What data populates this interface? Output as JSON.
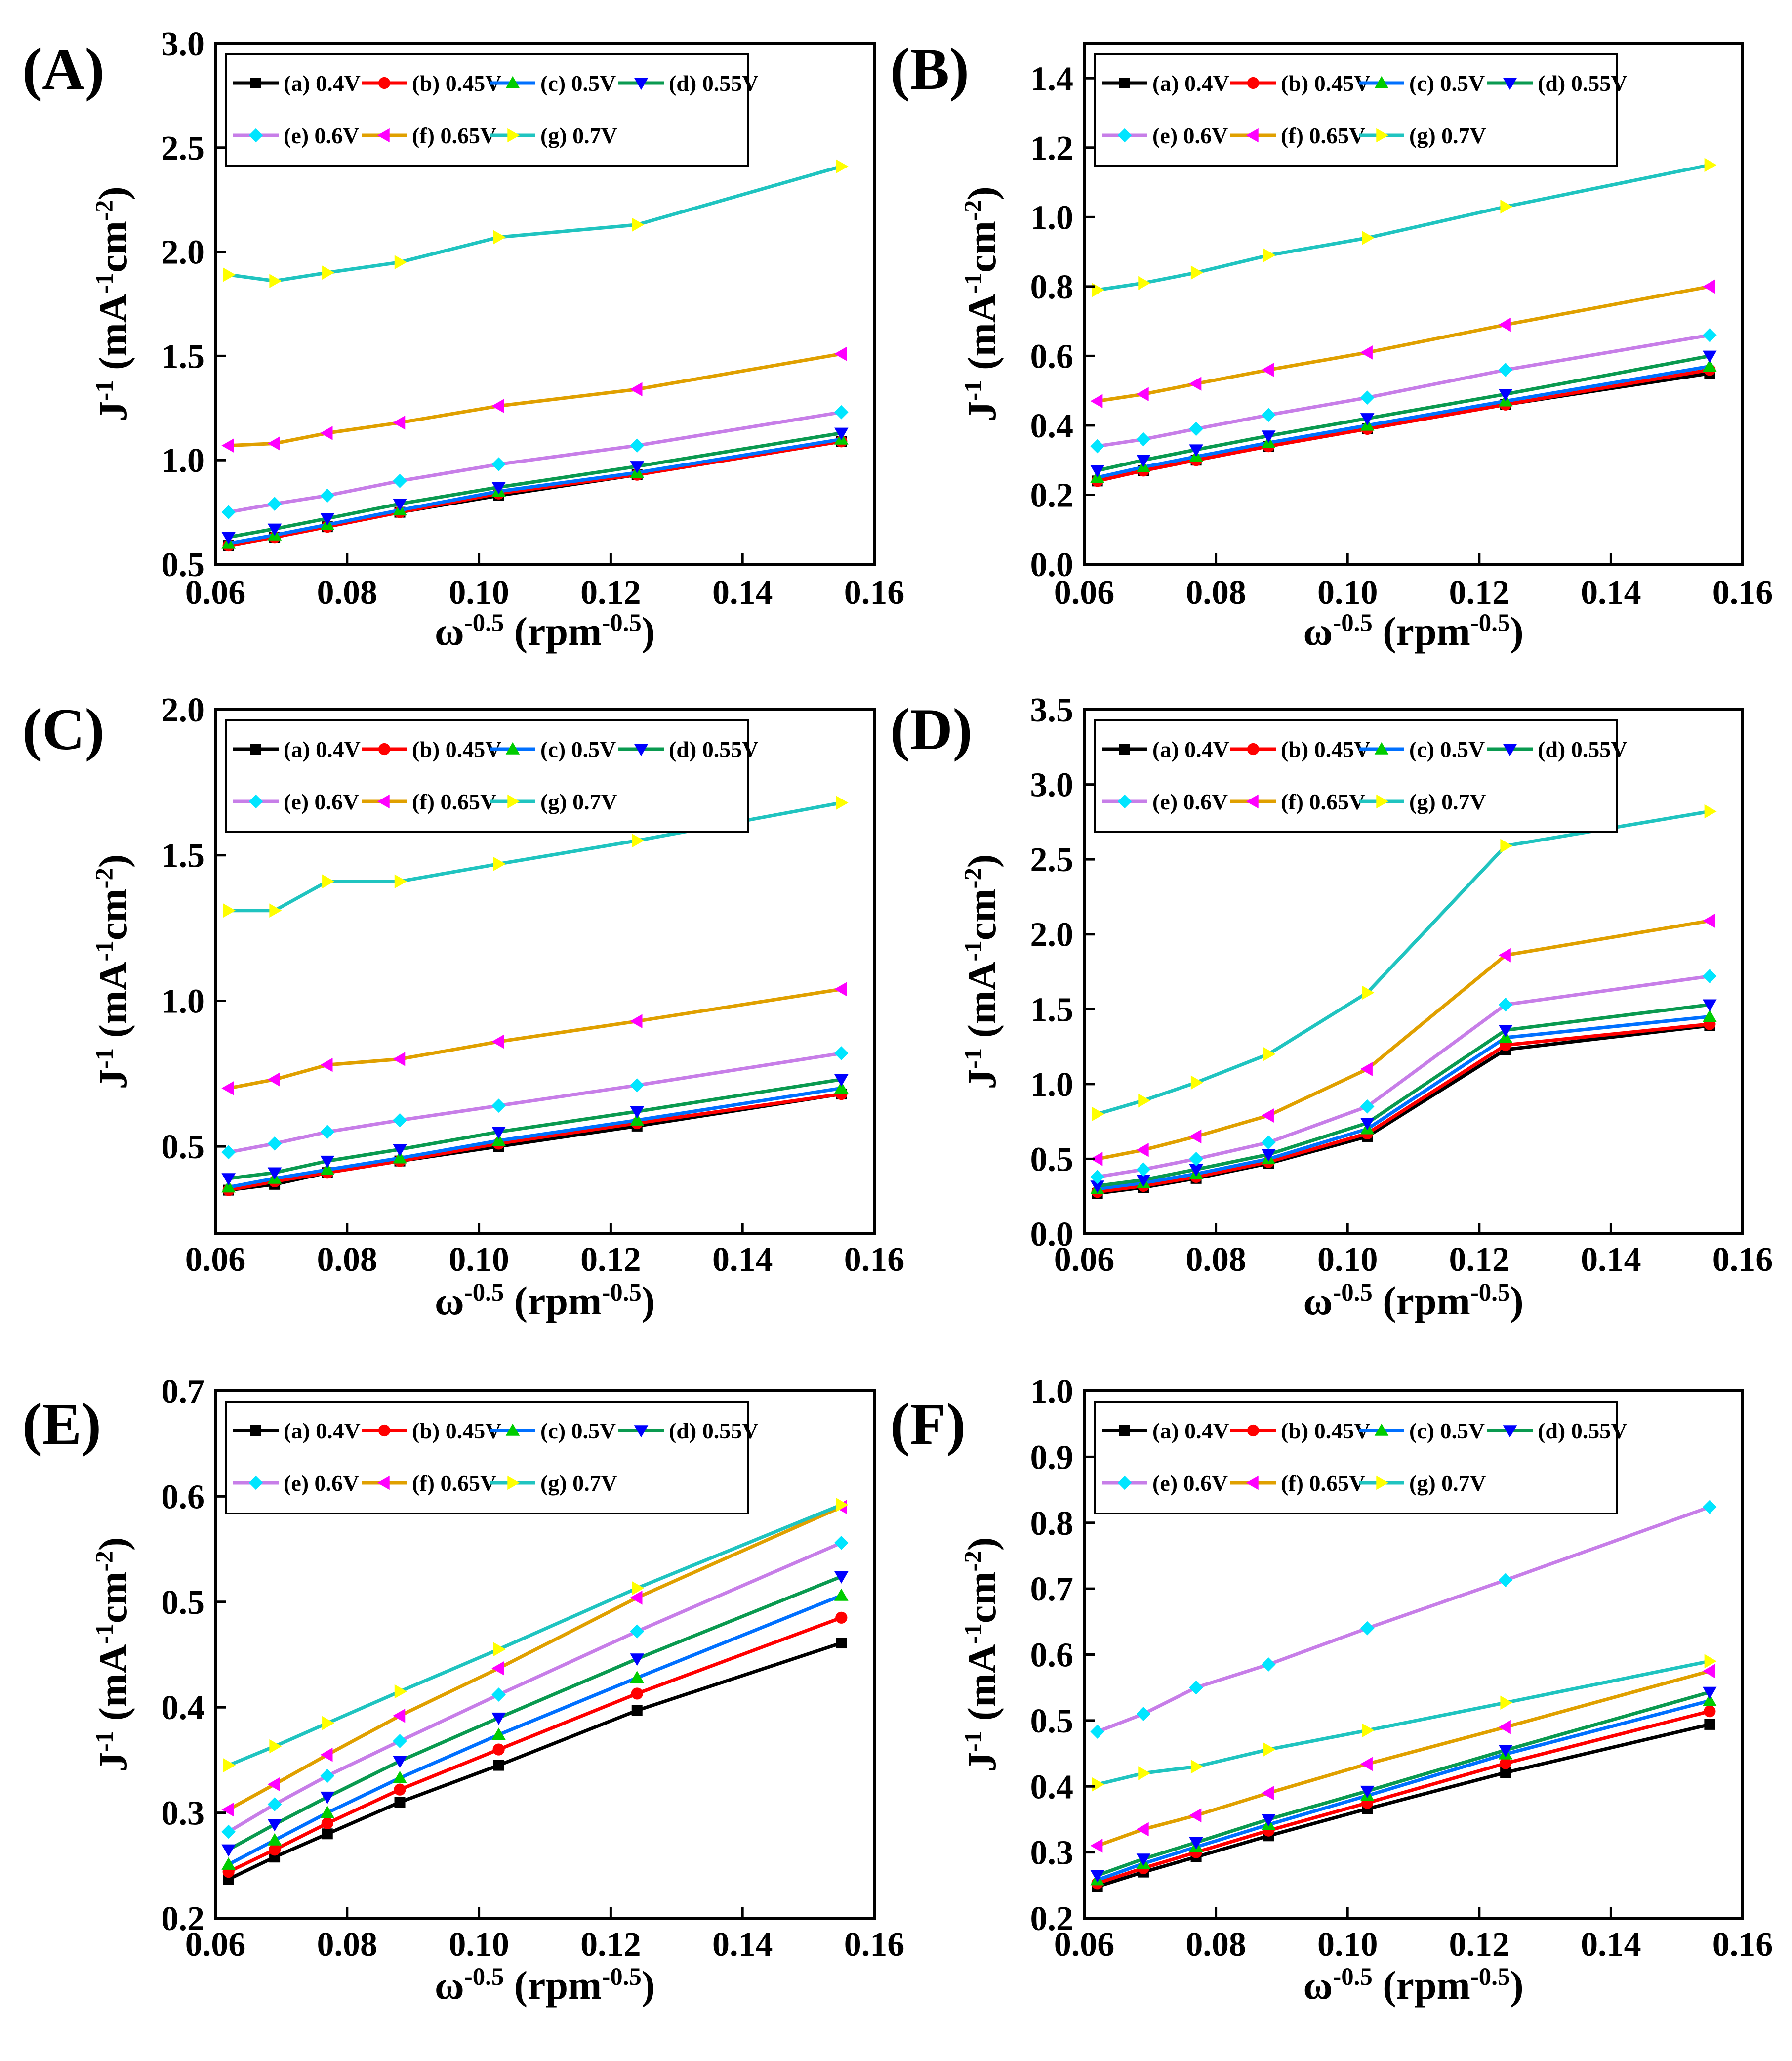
{
  "colors": {
    "a": "#000000",
    "b": "#ff0000",
    "c": "#0070ff",
    "d": "#0a9a50",
    "e": "#c77ee8",
    "f": "#e0a000",
    "g": "#20c4c0",
    "marker_a": "#000000",
    "marker_b": "#ff0000",
    "marker_c": "#00cc00",
    "marker_d": "#0000ff",
    "marker_e": "#00e5ff",
    "marker_f": "#ff00ff",
    "marker_g": "#ffff00"
  },
  "chart_data": [
    {
      "type": "line",
      "panel_label": "(A)",
      "xlabel": "ω^-0.5 (rpm^-0.5)",
      "ylabel": "J^-1 (mA^-1cm^-2)",
      "xlim": [
        0.06,
        0.16
      ],
      "ylim": [
        0.5,
        3.0
      ],
      "xticks": [
        "0.06",
        "0.08",
        "0.10",
        "0.12",
        "0.14",
        "0.16"
      ],
      "yticks": [
        "0.5",
        "1.0",
        "1.5",
        "2.0",
        "2.5",
        "3.0"
      ],
      "legend": [
        "(a) 0.4V",
        "(b) 0.45V",
        "(c) 0.5V",
        "(d) 0.55V",
        "(e) 0.6V",
        "(f) 0.65V",
        "(g) 0.7V"
      ],
      "x": [
        0.062,
        0.069,
        0.077,
        0.088,
        0.103,
        0.124,
        0.155
      ],
      "series": [
        {
          "name": "(a) 0.4V",
          "values": [
            0.59,
            0.63,
            0.68,
            0.75,
            0.83,
            0.93,
            1.09
          ]
        },
        {
          "name": "(b) 0.45V",
          "values": [
            0.59,
            0.63,
            0.68,
            0.75,
            0.84,
            0.93,
            1.09
          ]
        },
        {
          "name": "(c) 0.5V",
          "values": [
            0.6,
            0.64,
            0.69,
            0.76,
            0.85,
            0.94,
            1.1
          ]
        },
        {
          "name": "(d) 0.55V",
          "values": [
            0.63,
            0.67,
            0.72,
            0.79,
            0.87,
            0.97,
            1.13
          ]
        },
        {
          "name": "(e) 0.6V",
          "values": [
            0.75,
            0.79,
            0.83,
            0.9,
            0.98,
            1.07,
            1.23
          ]
        },
        {
          "name": "(f) 0.65V",
          "values": [
            1.07,
            1.08,
            1.13,
            1.18,
            1.26,
            1.34,
            1.51
          ]
        },
        {
          "name": "(g) 0.7V",
          "values": [
            1.89,
            1.86,
            1.9,
            1.95,
            2.07,
            2.13,
            2.41
          ]
        }
      ]
    },
    {
      "type": "line",
      "panel_label": "(B)",
      "xlabel": "ω^-0.5 (rpm^-0.5)",
      "ylabel": "J^-1 (mA^-1cm^-2)",
      "xlim": [
        0.06,
        0.16
      ],
      "ylim": [
        0.0,
        1.5
      ],
      "xticks": [
        "0.06",
        "0.08",
        "0.10",
        "0.12",
        "0.14",
        "0.16"
      ],
      "yticks": [
        "0.0",
        "0.2",
        "0.4",
        "0.6",
        "0.8",
        "1.0",
        "1.2",
        "1.4"
      ],
      "legend": [
        "(a) 0.4V",
        "(b) 0.45V",
        "(c) 0.5V",
        "(d) 0.55V",
        "(e) 0.6V",
        "(f) 0.65V",
        "(g) 0.7V"
      ],
      "x": [
        0.062,
        0.069,
        0.077,
        0.088,
        0.103,
        0.124,
        0.155
      ],
      "series": [
        {
          "name": "(a) 0.4V",
          "values": [
            0.24,
            0.27,
            0.3,
            0.34,
            0.39,
            0.46,
            0.55
          ]
        },
        {
          "name": "(b) 0.45V",
          "values": [
            0.24,
            0.27,
            0.3,
            0.34,
            0.39,
            0.46,
            0.56
          ]
        },
        {
          "name": "(c) 0.5V",
          "values": [
            0.25,
            0.28,
            0.31,
            0.35,
            0.4,
            0.47,
            0.57
          ]
        },
        {
          "name": "(d) 0.55V",
          "values": [
            0.27,
            0.3,
            0.33,
            0.37,
            0.42,
            0.49,
            0.6
          ]
        },
        {
          "name": "(e) 0.6V",
          "values": [
            0.34,
            0.36,
            0.39,
            0.43,
            0.48,
            0.56,
            0.66
          ]
        },
        {
          "name": "(f) 0.65V",
          "values": [
            0.47,
            0.49,
            0.52,
            0.56,
            0.61,
            0.69,
            0.8
          ]
        },
        {
          "name": "(g) 0.7V",
          "values": [
            0.79,
            0.81,
            0.84,
            0.89,
            0.94,
            1.03,
            1.15
          ]
        }
      ]
    },
    {
      "type": "line",
      "panel_label": "(C)",
      "xlabel": "ω^-0.5 (rpm^-0.5)",
      "ylabel": "J^-1 (mA^-1cm^-2)",
      "xlim": [
        0.06,
        0.16
      ],
      "ylim": [
        0.2,
        2.0
      ],
      "xticks": [
        "0.06",
        "0.08",
        "0.10",
        "0.12",
        "0.14",
        "0.16"
      ],
      "yticks": [
        "0.5",
        "1.0",
        "1.5",
        "2.0"
      ],
      "legend": [
        "(a) 0.4V",
        "(b) 0.45V",
        "(c) 0.5V",
        "(d) 0.55V",
        "(e) 0.6V",
        "(f) 0.65V",
        "(g) 0.7V"
      ],
      "x": [
        0.062,
        0.069,
        0.077,
        0.088,
        0.103,
        0.124,
        0.155
      ],
      "series": [
        {
          "name": "(a) 0.4V",
          "values": [
            0.35,
            0.37,
            0.41,
            0.45,
            0.5,
            0.57,
            0.68
          ]
        },
        {
          "name": "(b) 0.45V",
          "values": [
            0.35,
            0.38,
            0.41,
            0.45,
            0.51,
            0.58,
            0.68
          ]
        },
        {
          "name": "(c) 0.5V",
          "values": [
            0.36,
            0.39,
            0.42,
            0.46,
            0.52,
            0.59,
            0.7
          ]
        },
        {
          "name": "(d) 0.55V",
          "values": [
            0.39,
            0.41,
            0.45,
            0.49,
            0.55,
            0.62,
            0.73
          ]
        },
        {
          "name": "(e) 0.6V",
          "values": [
            0.48,
            0.51,
            0.55,
            0.59,
            0.64,
            0.71,
            0.82
          ]
        },
        {
          "name": "(f) 0.65V",
          "values": [
            0.7,
            0.73,
            0.78,
            0.8,
            0.86,
            0.93,
            1.04
          ]
        },
        {
          "name": "(g) 0.7V",
          "values": [
            1.31,
            1.31,
            1.41,
            1.41,
            1.47,
            1.55,
            1.68
          ]
        }
      ]
    },
    {
      "type": "line",
      "panel_label": "(D)",
      "xlabel": "ω^-0.5 (rpm^-0.5)",
      "ylabel": "J^-1 (mA^-1cm^-2)",
      "xlim": [
        0.06,
        0.16
      ],
      "ylim": [
        0.0,
        3.5
      ],
      "xticks": [
        "0.06",
        "0.08",
        "0.10",
        "0.12",
        "0.14",
        "0.16"
      ],
      "yticks": [
        "0.0",
        "0.5",
        "1.0",
        "1.5",
        "2.0",
        "2.5",
        "3.0",
        "3.5"
      ],
      "legend": [
        "(a) 0.4V",
        "(b) 0.45V",
        "(c) 0.5V",
        "(d) 0.55V",
        "(e) 0.6V",
        "(f) 0.65V",
        "(g) 0.7V"
      ],
      "x": [
        0.062,
        0.069,
        0.077,
        0.088,
        0.103,
        0.124,
        0.155
      ],
      "series": [
        {
          "name": "(a) 0.4V",
          "values": [
            0.27,
            0.31,
            0.37,
            0.47,
            0.65,
            1.23,
            1.39
          ]
        },
        {
          "name": "(b) 0.45V",
          "values": [
            0.28,
            0.32,
            0.38,
            0.48,
            0.67,
            1.26,
            1.4
          ]
        },
        {
          "name": "(c) 0.5V",
          "values": [
            0.3,
            0.34,
            0.4,
            0.5,
            0.7,
            1.31,
            1.45
          ]
        },
        {
          "name": "(d) 0.55V",
          "values": [
            0.32,
            0.36,
            0.43,
            0.53,
            0.74,
            1.36,
            1.53
          ]
        },
        {
          "name": "(e) 0.6V",
          "values": [
            0.38,
            0.43,
            0.5,
            0.61,
            0.85,
            1.53,
            1.72
          ]
        },
        {
          "name": "(f) 0.65V",
          "values": [
            0.5,
            0.56,
            0.65,
            0.79,
            1.1,
            1.86,
            2.09
          ]
        },
        {
          "name": "(g) 0.7V",
          "values": [
            0.8,
            0.89,
            1.01,
            1.2,
            1.61,
            2.59,
            2.82
          ]
        }
      ]
    },
    {
      "type": "line",
      "panel_label": "(E)",
      "xlabel": "ω^-0.5 (rpm^-0.5)",
      "ylabel": "J^-1 (mA^-1cm^-2)",
      "xlim": [
        0.06,
        0.16
      ],
      "ylim": [
        0.2,
        0.7
      ],
      "xticks": [
        "0.06",
        "0.08",
        "0.10",
        "0.12",
        "0.14",
        "0.16"
      ],
      "yticks": [
        "0.2",
        "0.3",
        "0.4",
        "0.5",
        "0.6",
        "0.7"
      ],
      "legend": [
        "(a) 0.4V",
        "(b) 0.45V",
        "(c) 0.5V",
        "(d) 0.55V",
        "(e) 0.6V",
        "(f) 0.65V",
        "(g) 0.7V"
      ],
      "x": [
        0.062,
        0.069,
        0.077,
        0.088,
        0.103,
        0.124,
        0.155
      ],
      "series": [
        {
          "name": "(a) 0.4V",
          "values": [
            0.237,
            0.258,
            0.28,
            0.31,
            0.345,
            0.397,
            0.461
          ]
        },
        {
          "name": "(b) 0.45V",
          "values": [
            0.244,
            0.265,
            0.29,
            0.322,
            0.36,
            0.413,
            0.485
          ]
        },
        {
          "name": "(c) 0.5V",
          "values": [
            0.251,
            0.274,
            0.3,
            0.333,
            0.374,
            0.428,
            0.506
          ]
        },
        {
          "name": "(d) 0.55V",
          "values": [
            0.265,
            0.289,
            0.315,
            0.349,
            0.39,
            0.446,
            0.524
          ]
        },
        {
          "name": "(e) 0.6V",
          "values": [
            0.282,
            0.308,
            0.335,
            0.368,
            0.412,
            0.472,
            0.556
          ]
        },
        {
          "name": "(f) 0.65V",
          "values": [
            0.303,
            0.327,
            0.355,
            0.392,
            0.437,
            0.504,
            0.59
          ]
        },
        {
          "name": "(g) 0.7V",
          "values": [
            0.345,
            0.363,
            0.385,
            0.415,
            0.455,
            0.513,
            0.592
          ]
        }
      ]
    },
    {
      "type": "line",
      "panel_label": "(F)",
      "xlabel": "ω^-0.5 (rpm^-0.5)",
      "ylabel": "J^-1 (mA^-1cm^-2)",
      "xlim": [
        0.06,
        0.16
      ],
      "ylim": [
        0.2,
        1.0
      ],
      "xticks": [
        "0.06",
        "0.08",
        "0.10",
        "0.12",
        "0.14",
        "0.16"
      ],
      "yticks": [
        "0.2",
        "0.3",
        "0.4",
        "0.5",
        "0.6",
        "0.7",
        "0.8",
        "0.9",
        "1.0"
      ],
      "legend": [
        "(a) 0.4V",
        "(b) 0.45V",
        "(c) 0.5V",
        "(d) 0.55V",
        "(e) 0.6V",
        "(f) 0.65V",
        "(g) 0.7V"
      ],
      "x": [
        0.062,
        0.069,
        0.077,
        0.088,
        0.103,
        0.124,
        0.155
      ],
      "series": [
        {
          "name": "(a) 0.4V",
          "values": [
            0.248,
            0.27,
            0.293,
            0.325,
            0.366,
            0.421,
            0.494
          ]
        },
        {
          "name": "(b) 0.45V",
          "values": [
            0.253,
            0.276,
            0.3,
            0.333,
            0.375,
            0.435,
            0.514
          ]
        },
        {
          "name": "(c) 0.5V",
          "values": [
            0.258,
            0.283,
            0.308,
            0.342,
            0.386,
            0.449,
            0.53
          ]
        },
        {
          "name": "(d) 0.55V",
          "values": [
            0.265,
            0.29,
            0.315,
            0.35,
            0.393,
            0.455,
            0.543
          ]
        },
        {
          "name": "(e) 0.6V",
          "values": [
            0.483,
            0.51,
            0.55,
            0.585,
            0.64,
            0.713,
            0.824
          ]
        },
        {
          "name": "(f) 0.65V",
          "values": [
            0.31,
            0.335,
            0.356,
            0.39,
            0.434,
            0.49,
            0.575
          ]
        },
        {
          "name": "(g) 0.7V",
          "values": [
            0.403,
            0.42,
            0.43,
            0.456,
            0.485,
            0.527,
            0.59
          ]
        }
      ]
    }
  ]
}
